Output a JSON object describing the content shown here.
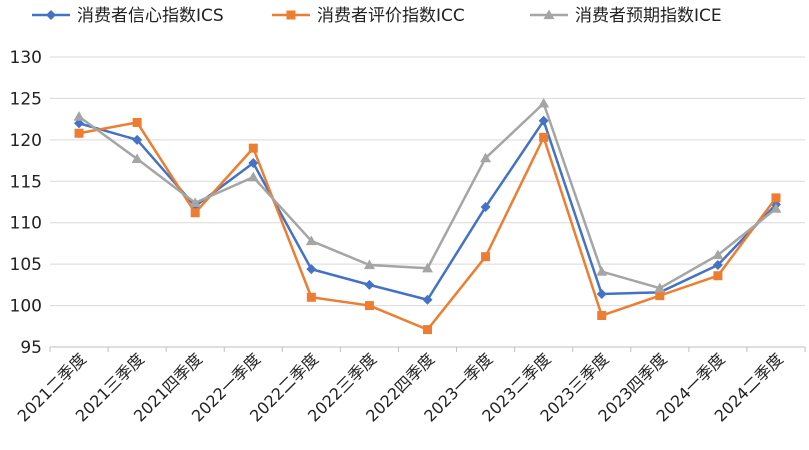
{
  "chart_data": {
    "type": "line",
    "title": "",
    "xlabel": "",
    "ylabel": "",
    "ylim": [
      95,
      130
    ],
    "yticks": [
      95,
      100,
      105,
      110,
      115,
      120,
      125,
      130
    ],
    "grid": "horizontal",
    "legend_position": "top",
    "categories": [
      "2021二季度",
      "2021三季度",
      "2021四季度",
      "2022一季度",
      "2022二季度",
      "2022三季度",
      "2022四季度",
      "2023一季度",
      "2023二季度",
      "2023三季度",
      "2023四季度",
      "2024一季度",
      "2024二季度"
    ],
    "series": [
      {
        "name": "消费者信心指数ICS",
        "color": "#4472C4",
        "marker": "diamond",
        "values": [
          122.0,
          120.0,
          112.0,
          117.2,
          104.4,
          102.5,
          100.7,
          111.9,
          122.3,
          101.4,
          101.6,
          104.9,
          112.2
        ]
      },
      {
        "name": "消费者评价指数ICC",
        "color": "#ED7D31",
        "marker": "square",
        "values": [
          120.8,
          122.1,
          111.2,
          119.0,
          101.0,
          100.0,
          97.1,
          105.9,
          120.3,
          98.8,
          101.2,
          103.6,
          113.0
        ]
      },
      {
        "name": "消费者预期指数ICE",
        "color": "#A5A5A5",
        "marker": "triangle",
        "values": [
          122.8,
          117.7,
          112.4,
          115.5,
          107.8,
          104.9,
          104.5,
          117.8,
          124.4,
          104.1,
          102.1,
          106.1,
          111.7
        ]
      }
    ]
  }
}
